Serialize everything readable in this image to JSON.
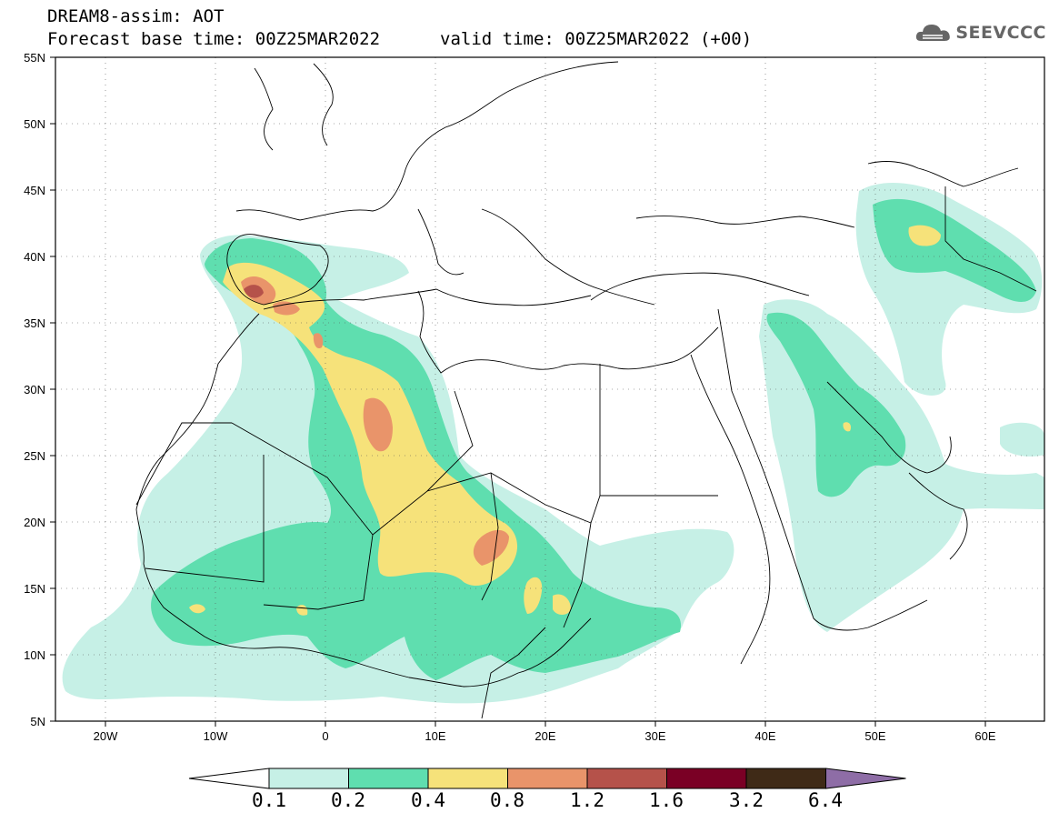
{
  "header": {
    "title_line1": "DREAM8-assim: AOT",
    "base_time": "Forecast base time: 00Z25MAR2022",
    "valid_time": "valid time: 00Z25MAR2022 (+00)",
    "logo_text": "SEEVCCC"
  },
  "map": {
    "projection": "lat-lon",
    "lon_range": [
      -25,
      65
    ],
    "lat_range": [
      5,
      55
    ],
    "x_ticks": [
      "20W",
      "10W",
      "0",
      "10E",
      "20E",
      "30E",
      "40E",
      "50E",
      "60E"
    ],
    "y_ticks": [
      "55N",
      "50N",
      "45N",
      "40N",
      "35N",
      "30N",
      "25N",
      "20N",
      "15N",
      "10N",
      "5N"
    ],
    "grid": "dotted"
  },
  "colorbar": {
    "labels": [
      "0.1",
      "0.2",
      "0.4",
      "0.8",
      "1.2",
      "1.6",
      "3.2",
      "6.4"
    ],
    "colors": [
      "#ffffff",
      "#c6f0e6",
      "#5fdeaf",
      "#f6e27a",
      "#e9946a",
      "#b5524a",
      "#7a0025",
      "#3f2a17",
      "#8e6da6"
    ]
  }
}
